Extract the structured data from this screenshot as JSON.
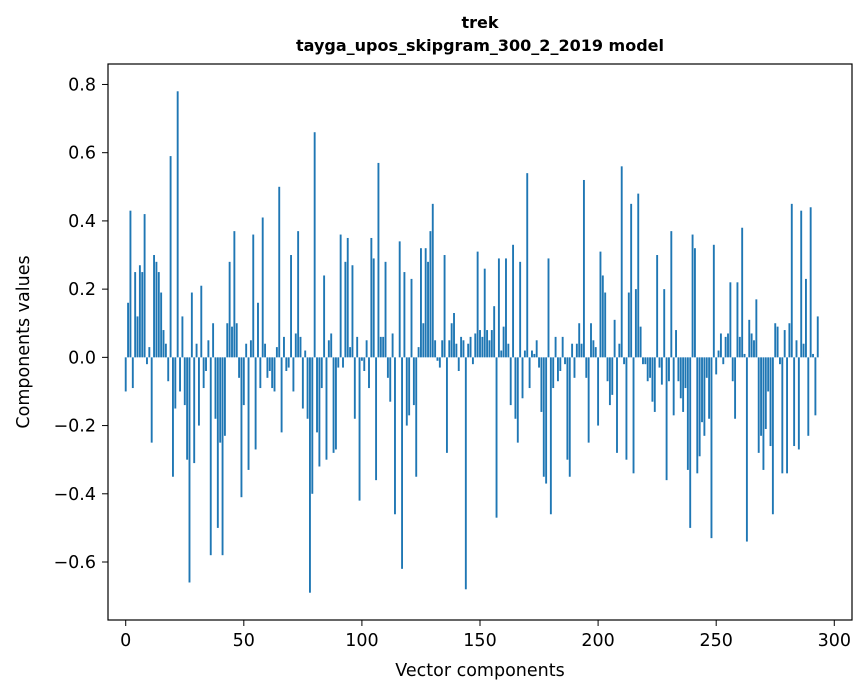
{
  "chart_data": {
    "type": "bar",
    "title": "trek",
    "subtitle": "tayga_upos_skipgram_300_2_2019 model",
    "xlabel": "Vector components",
    "ylabel": "Components values",
    "xlim": [
      -7.5,
      307.5
    ],
    "ylim": [
      -0.77,
      0.86
    ],
    "xticks": [
      0,
      50,
      100,
      150,
      200,
      250,
      300
    ],
    "xtick_labels": [
      "0",
      "50",
      "100",
      "150",
      "200",
      "250",
      "300"
    ],
    "yticks": [
      -0.6,
      -0.4,
      -0.2,
      0.0,
      0.2,
      0.4,
      0.6,
      0.8
    ],
    "ytick_labels": [
      "−0.6",
      "−0.4",
      "−0.2",
      "0.0",
      "0.2",
      "0.4",
      "0.6",
      "0.8"
    ],
    "bar_color": "#1f77b4",
    "values": [
      -0.1,
      0.16,
      0.43,
      -0.09,
      0.25,
      0.12,
      0.27,
      0.25,
      0.42,
      -0.02,
      0.03,
      -0.25,
      0.3,
      0.28,
      0.25,
      0.19,
      0.08,
      0.04,
      -0.07,
      0.59,
      -0.35,
      -0.15,
      0.78,
      -0.1,
      0.12,
      -0.14,
      -0.3,
      -0.66,
      0.19,
      -0.31,
      0.04,
      -0.2,
      0.21,
      -0.09,
      -0.04,
      0.05,
      -0.58,
      0.1,
      -0.18,
      -0.5,
      -0.25,
      -0.58,
      -0.23,
      0.1,
      0.28,
      0.09,
      0.37,
      0.1,
      -0.06,
      -0.41,
      -0.14,
      0.04,
      -0.33,
      0.05,
      0.36,
      -0.27,
      0.16,
      -0.09,
      0.41,
      0.04,
      -0.06,
      -0.04,
      -0.09,
      -0.1,
      0.03,
      0.5,
      -0.22,
      0.06,
      -0.04,
      -0.03,
      0.3,
      -0.1,
      0.07,
      0.37,
      0.06,
      -0.15,
      0.02,
      -0.18,
      -0.69,
      -0.4,
      0.66,
      -0.22,
      -0.32,
      -0.09,
      0.24,
      -0.3,
      0.05,
      0.07,
      -0.28,
      -0.27,
      -0.03,
      0.36,
      -0.03,
      0.28,
      0.35,
      0.03,
      0.27,
      -0.18,
      0.06,
      -0.42,
      -0.01,
      -0.04,
      0.05,
      -0.09,
      0.35,
      0.29,
      -0.36,
      0.57,
      0.06,
      0.06,
      0.28,
      -0.06,
      -0.13,
      0.07,
      -0.46,
      0.0,
      0.34,
      -0.62,
      0.25,
      -0.2,
      -0.17,
      0.23,
      -0.14,
      -0.35,
      0.03,
      0.32,
      0.1,
      0.32,
      0.28,
      0.37,
      0.45,
      0.05,
      -0.01,
      -0.03,
      0.05,
      0.3,
      -0.28,
      0.05,
      0.1,
      0.13,
      0.04,
      -0.04,
      0.06,
      0.05,
      -0.68,
      0.04,
      0.06,
      -0.02,
      0.07,
      0.31,
      0.08,
      0.06,
      0.26,
      0.08,
      0.05,
      0.08,
      0.15,
      -0.47,
      0.29,
      0.02,
      0.09,
      0.29,
      0.04,
      -0.14,
      0.33,
      -0.18,
      -0.25,
      0.28,
      -0.12,
      0.02,
      0.54,
      -0.09,
      0.02,
      0.01,
      0.05,
      -0.03,
      -0.16,
      -0.35,
      -0.37,
      0.29,
      -0.46,
      -0.09,
      0.06,
      -0.07,
      -0.04,
      0.06,
      -0.02,
      -0.3,
      -0.35,
      0.04,
      -0.06,
      0.04,
      0.1,
      0.04,
      0.52,
      -0.06,
      -0.25,
      0.1,
      0.05,
      0.03,
      -0.2,
      0.31,
      0.24,
      0.19,
      -0.07,
      -0.14,
      -0.11,
      0.11,
      -0.28,
      0.04,
      0.56,
      -0.02,
      -0.3,
      0.19,
      0.45,
      -0.34,
      0.2,
      0.48,
      0.09,
      -0.02,
      -0.02,
      -0.07,
      -0.06,
      -0.13,
      -0.16,
      0.3,
      -0.03,
      -0.08,
      0.2,
      -0.36,
      -0.07,
      0.37,
      -0.17,
      0.08,
      -0.07,
      -0.12,
      -0.16,
      -0.09,
      -0.33,
      -0.5,
      0.36,
      0.32,
      -0.34,
      -0.29,
      -0.19,
      -0.23,
      -0.06,
      -0.18,
      -0.53,
      0.33,
      -0.05,
      0.02,
      0.07,
      -0.02,
      0.06,
      0.07,
      0.22,
      -0.07,
      -0.18,
      0.22,
      0.06,
      0.38,
      0.01,
      -0.54,
      0.11,
      0.07,
      0.05,
      0.17,
      -0.28,
      -0.23,
      -0.33,
      -0.21,
      -0.1,
      -0.26,
      -0.46,
      0.1,
      0.09,
      -0.02,
      -0.34,
      0.08,
      -0.34,
      0.1,
      0.45,
      -0.26,
      0.05,
      -0.27,
      0.43,
      0.04,
      0.23,
      -0.23,
      0.44,
      0.01,
      -0.17,
      0.12,
      0.0
    ]
  }
}
